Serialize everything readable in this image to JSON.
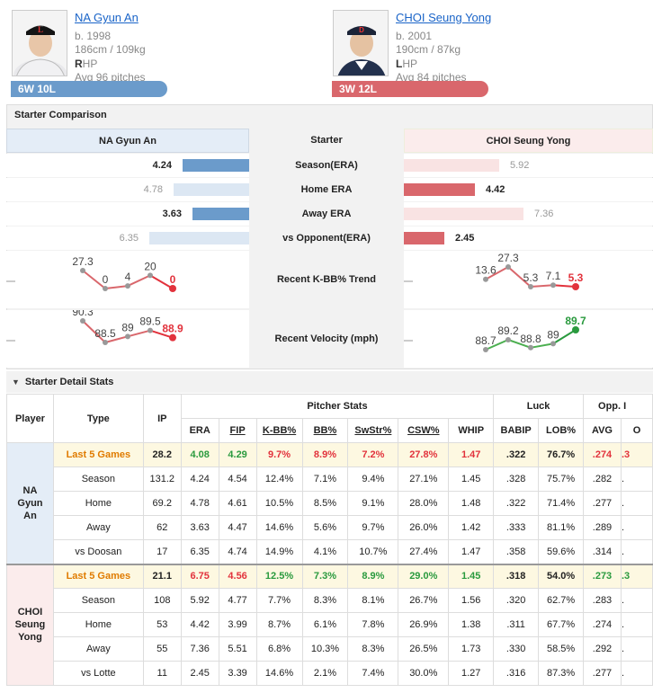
{
  "players": [
    {
      "name": "NA Gyun An",
      "born": "b. 1998",
      "size": "186cm / 109kg",
      "hand_letter": "R",
      "hand_rest": "HP",
      "avg_pitches": "Avg 96 pitches",
      "record": "6W 10L",
      "color": "#6b9bcb"
    },
    {
      "name": "CHOI Seung Yong",
      "born": "b. 2001",
      "size": "190cm / 87kg",
      "hand_letter": "L",
      "hand_rest": "HP",
      "avg_pitches": "Avg 84 pitches",
      "record": "3W 12L",
      "color": "#d9676c"
    }
  ],
  "comparison": {
    "title": "Starter Comparison",
    "header_left": "NA Gyun An",
    "header_mid": "Starter",
    "header_right": "CHOI Seung Yong",
    "rows": [
      {
        "label": "Season(ERA)",
        "left": "4.24",
        "right": "5.92",
        "left_better": true,
        "left_frac": 0.42,
        "right_frac": 0.59
      },
      {
        "label": "Home ERA",
        "left": "4.78",
        "right": "4.42",
        "left_better": false,
        "left_frac": 0.48,
        "right_frac": 0.44
      },
      {
        "label": "Away ERA",
        "left": "3.63",
        "right": "7.36",
        "left_better": true,
        "left_frac": 0.36,
        "right_frac": 0.74
      },
      {
        "label": "vs Opponent(ERA)",
        "left": "6.35",
        "right": "2.45",
        "left_better": false,
        "left_frac": 0.63,
        "right_frac": 0.25
      }
    ],
    "trend_label": "Recent K-BB% Trend",
    "trend_left": [
      27.3,
      0,
      4,
      20,
      0
    ],
    "trend_left_labels": [
      "27.3",
      "0",
      "4",
      "20",
      "0"
    ],
    "trend_right": [
      13.6,
      27.3,
      5.3,
      7.1,
      5.3
    ],
    "trend_right_labels": [
      "13.6",
      "27.3",
      "5.3",
      "7.1",
      "5.3"
    ],
    "velo_label": "Recent Velocity (mph)",
    "velo_left": [
      90.3,
      88.5,
      89,
      89.5,
      88.9
    ],
    "velo_left_labels": [
      "90.3",
      "88.5",
      "89",
      "89.5",
      "88.9"
    ],
    "velo_right": [
      88.7,
      89.2,
      88.8,
      89,
      89.7
    ],
    "velo_right_labels": [
      "88.7",
      "89.2",
      "88.8",
      "89",
      "89.7"
    ]
  },
  "detail": {
    "title": "Starter Detail Stats",
    "headers": {
      "player": "Player",
      "type": "Type",
      "ip": "IP",
      "group_pitcher": "Pitcher Stats",
      "group_luck": "Luck",
      "group_opp": "Opp. I",
      "cols": [
        "ERA",
        "FIP",
        "K-BB%",
        "BB%",
        "SwStr%",
        "CSW%",
        "WHIP",
        "BABIP",
        "LOB%",
        "AVG",
        "O"
      ]
    },
    "groups": [
      {
        "player_lines": [
          "NA",
          "Gyun",
          "An"
        ],
        "color": "blue",
        "rows": [
          {
            "type": "Last 5 Games",
            "hl": true,
            "cells": [
              "28.2",
              "4.08",
              "4.29",
              "9.7%",
              "8.9%",
              "7.2%",
              "27.8%",
              "1.47",
              ".322",
              "76.7%",
              ".274",
              ".3"
            ],
            "cls": [
              "",
              "pos",
              "pos",
              "neg",
              "neg",
              "neg",
              "neg",
              "neg",
              "",
              "",
              "neg",
              "neg"
            ]
          },
          {
            "type": "Season",
            "cells": [
              "131.2",
              "4.24",
              "4.54",
              "12.4%",
              "7.1%",
              "9.4%",
              "27.1%",
              "1.45",
              ".328",
              "75.7%",
              ".282",
              "."
            ]
          },
          {
            "type": "Home",
            "cells": [
              "69.2",
              "4.78",
              "4.61",
              "10.5%",
              "8.5%",
              "9.1%",
              "28.0%",
              "1.48",
              ".322",
              "71.4%",
              ".277",
              "."
            ]
          },
          {
            "type": "Away",
            "cells": [
              "62",
              "3.63",
              "4.47",
              "14.6%",
              "5.6%",
              "9.7%",
              "26.0%",
              "1.42",
              ".333",
              "81.1%",
              ".289",
              "."
            ]
          },
          {
            "type": "vs Doosan",
            "cells": [
              "17",
              "6.35",
              "4.74",
              "14.9%",
              "4.1%",
              "10.7%",
              "27.4%",
              "1.47",
              ".358",
              "59.6%",
              ".314",
              "."
            ]
          }
        ]
      },
      {
        "player_lines": [
          "CHOI",
          "Seung",
          "Yong"
        ],
        "color": "red",
        "rows": [
          {
            "type": "Last 5 Games",
            "hl": true,
            "cells": [
              "21.1",
              "6.75",
              "4.56",
              "12.5%",
              "7.3%",
              "8.9%",
              "29.0%",
              "1.45",
              ".318",
              "54.0%",
              ".273",
              ".3"
            ],
            "cls": [
              "",
              "neg",
              "neg",
              "pos",
              "pos",
              "pos",
              "pos",
              "pos",
              "",
              "",
              "pos",
              "pos"
            ]
          },
          {
            "type": "Season",
            "cells": [
              "108",
              "5.92",
              "4.77",
              "7.7%",
              "8.3%",
              "8.1%",
              "26.7%",
              "1.56",
              ".320",
              "62.7%",
              ".283",
              "."
            ]
          },
          {
            "type": "Home",
            "cells": [
              "53",
              "4.42",
              "3.99",
              "8.7%",
              "6.1%",
              "7.8%",
              "26.9%",
              "1.38",
              ".311",
              "67.7%",
              ".274",
              "."
            ]
          },
          {
            "type": "Away",
            "cells": [
              "55",
              "7.36",
              "5.51",
              "6.8%",
              "10.3%",
              "8.3%",
              "26.5%",
              "1.73",
              ".330",
              "58.5%",
              ".292",
              "."
            ]
          },
          {
            "type": "vs Lotte",
            "cells": [
              "11",
              "2.45",
              "3.39",
              "14.6%",
              "2.1%",
              "7.4%",
              "30.0%",
              "1.27",
              ".316",
              "87.3%",
              ".277",
              "."
            ]
          }
        ]
      }
    ]
  }
}
